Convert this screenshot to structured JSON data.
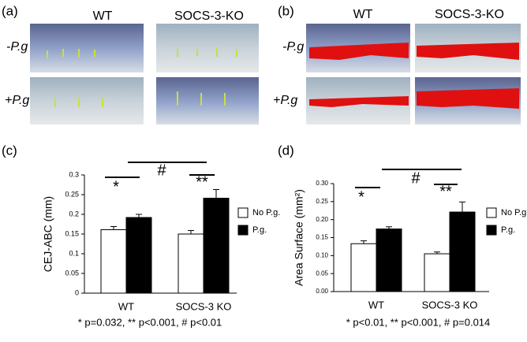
{
  "panels": {
    "a": {
      "label": "(a)",
      "columns": [
        "WT",
        "SOCS-3-KO"
      ],
      "rows": [
        "-P.g",
        "+P.g"
      ]
    },
    "b": {
      "label": "(b)",
      "columns": [
        "WT",
        "SOCS-3-KO"
      ],
      "rows": [
        "-P.g",
        "+P.g"
      ]
    }
  },
  "chart_data": [
    {
      "type": "bar",
      "panel": "(c)",
      "y_label": "CEJ-ABC (mm)",
      "categories": [
        "WT",
        "SOCS-3 KO"
      ],
      "series": [
        {
          "name": "No P.g.",
          "color": "#ffffff",
          "values": [
            0.161,
            0.15
          ],
          "errors": [
            0.008,
            0.009
          ]
        },
        {
          "name": "P.g.",
          "color": "#000000",
          "values": [
            0.192,
            0.241
          ],
          "errors": [
            0.008,
            0.022
          ]
        }
      ],
      "ylim": [
        0,
        0.3
      ],
      "yticks": [
        0,
        0.05,
        0.1,
        0.15,
        0.2,
        0.25,
        0.3
      ],
      "annotations": [
        "*",
        "#",
        "**"
      ],
      "footnote": "* p=0.032, ** p<0.001, # p<0.01"
    },
    {
      "type": "bar",
      "panel": "(d)",
      "y_label": "Area Surface (mm²)",
      "categories": [
        "WT",
        "SOCS-3 KO"
      ],
      "series": [
        {
          "name": "No P.g.",
          "color": "#ffffff",
          "values": [
            0.133,
            0.105
          ],
          "errors": [
            0.008,
            0.005
          ]
        },
        {
          "name": "P.g.",
          "color": "#000000",
          "values": [
            0.174,
            0.221
          ],
          "errors": [
            0.006,
            0.028
          ]
        }
      ],
      "ylim": [
        0,
        0.3
      ],
      "yticks": [
        {
          "value": 0,
          "label": "0.00"
        },
        {
          "value": 0.05,
          "label": "0.05"
        },
        {
          "value": 0.1,
          "label": "0.10"
        },
        {
          "value": 0.15,
          "label": "0.15"
        },
        {
          "value": 0.2,
          "label": "0.20"
        },
        {
          "value": 0.25,
          "label": "0.25"
        },
        {
          "value": 0.3,
          "label": "0.30"
        }
      ],
      "annotations": [
        "*",
        "#",
        "**"
      ],
      "footnote": "* p<0.01, ** p<0.001, # p=0.014"
    }
  ]
}
